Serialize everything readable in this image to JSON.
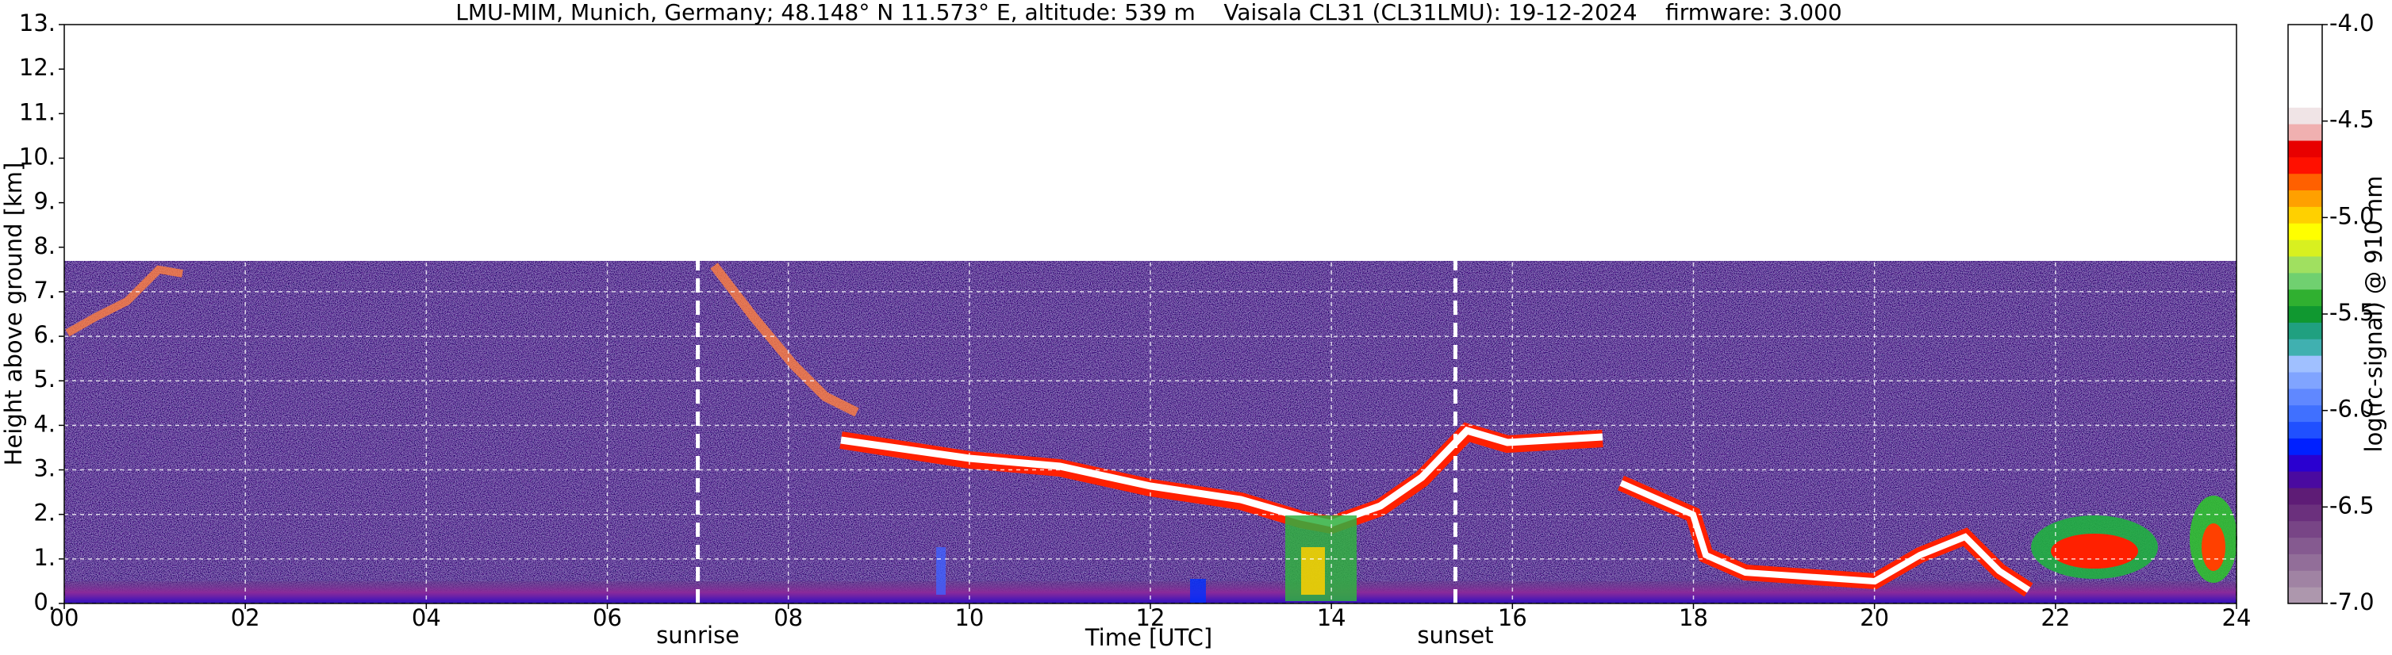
{
  "chart_data": {
    "type": "heatmap",
    "title": "LMU-MIM, Munich, Germany; 48.148° N 11.573° E, altitude: 539 m    Vaisala CL31 (CL31LMU): 19-12-2024    firmware: 3.000",
    "x_label": "Time [UTC]",
    "y_label": "Height above ground [km]",
    "xlim": [
      0,
      24
    ],
    "xticks": [
      {
        "value": 0,
        "label": "00"
      },
      {
        "value": 2,
        "label": "02"
      },
      {
        "value": 4,
        "label": "04"
      },
      {
        "value": 6,
        "label": "06"
      },
      {
        "value": 8,
        "label": "08"
      },
      10,
      12,
      14,
      16,
      18,
      20,
      22,
      24
    ],
    "ylim": [
      0,
      13
    ],
    "yticks": [
      {
        "value": 0,
        "label": "0."
      },
      {
        "value": 1,
        "label": "1."
      },
      {
        "value": 2,
        "label": "2."
      },
      {
        "value": 3,
        "label": "3."
      },
      {
        "value": 4,
        "label": "4."
      },
      {
        "value": 5,
        "label": "5."
      },
      {
        "value": 6,
        "label": "6."
      },
      {
        "value": 7,
        "label": "7."
      },
      {
        "value": 8,
        "label": "8."
      },
      {
        "value": 9,
        "label": "9."
      },
      {
        "value": 10,
        "label": "10."
      },
      {
        "value": 11,
        "label": "11."
      },
      {
        "value": 12,
        "label": "12."
      },
      {
        "value": 13,
        "label": "13."
      }
    ],
    "grid": true,
    "annotations": [
      {
        "text": "sunrise",
        "x": 7.0
      },
      {
        "text": "sunset",
        "x": 15.37
      }
    ],
    "colorbar": {
      "label": "log(rc-signal) @ 910 nm",
      "lim": [
        -7,
        -4
      ],
      "ticks": [
        {
          "value": -7,
          "label": "-7.0"
        },
        {
          "value": -6.5,
          "label": "-6.5"
        },
        {
          "value": -6,
          "label": "-6.0"
        },
        {
          "value": -5.5,
          "label": "-5.5"
        },
        {
          "value": -5,
          "label": "-5.0"
        },
        {
          "value": -4.5,
          "label": "-4.5"
        },
        {
          "value": -4,
          "label": "-4.0"
        }
      ],
      "colors": [
        "#ad97ad",
        "#a083a3",
        "#926e99",
        "#855a90",
        "#784586",
        "#6b307d",
        "#5e1c76",
        "#4a0aa0",
        "#2a00d0",
        "#0020ff",
        "#2050ff",
        "#4070ff",
        "#6088ff",
        "#80a4ff",
        "#a0c0ff",
        "#40b0b0",
        "#20a080",
        "#109830",
        "#30b030",
        "#70d070",
        "#a0e060",
        "#d8f020",
        "#ffff00",
        "#ffd000",
        "#ffa000",
        "#ff6000",
        "#ff1000",
        "#e80000",
        "#f0b0b0",
        "#f0e4e6",
        "#ffffff",
        "#ffffff",
        "#ffffff",
        "#ffffff",
        "#ffffff"
      ]
    }
  }
}
